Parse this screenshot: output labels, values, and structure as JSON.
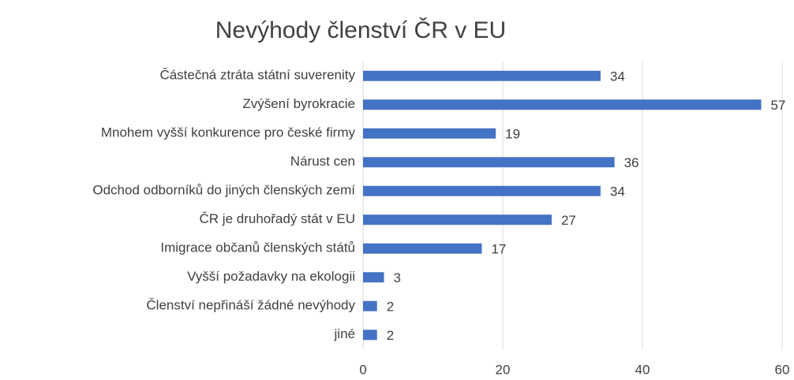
{
  "chart_data": {
    "type": "bar",
    "orientation": "horizontal",
    "title": "Nevýhody členství ČR v EU",
    "categories": [
      "Částečná ztráta státní suverenity",
      "Zvýšení byrokracie",
      "Mnohem vyšší konkurence pro české firmy",
      "Nárust cen",
      "Odchod odborníků do jiných členských zemí",
      "ČR je druhořadý stát v EU",
      "Imigrace občanů členských států",
      "Vyšší požadavky na ekologii",
      "Členství nepřináší žádné nevýhody",
      "jiné"
    ],
    "values": [
      34,
      57,
      19,
      36,
      34,
      27,
      17,
      3,
      2,
      2
    ],
    "color": "#4472c4",
    "xlim": [
      0,
      60
    ],
    "xticks": [
      0,
      20,
      40,
      60
    ],
    "grid": true
  }
}
